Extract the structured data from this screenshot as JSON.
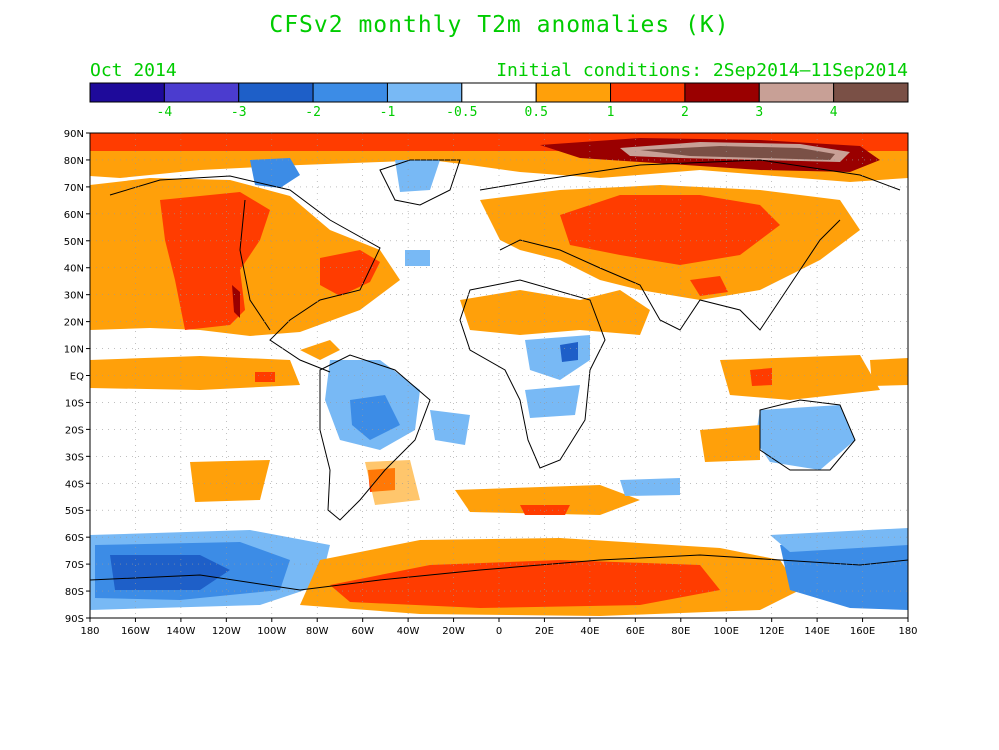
{
  "title": "CFSv2 monthly T2m anomalies (K)",
  "forecast_month": "Oct 2014",
  "initial_conditions": "Initial conditions: 2Sep2014–11Sep2014",
  "colorbar": {
    "colors": [
      "#1e0a9a",
      "#4b3ccf",
      "#1e5fc8",
      "#3c8ce6",
      "#78b9f5",
      "#ffffff",
      "#ffa00a",
      "#ff3c00",
      "#9a0000",
      "#c8a096",
      "#7a5046"
    ],
    "labels": [
      "-4",
      "-3",
      "-2",
      "-1",
      "-0.5",
      "0.5",
      "1",
      "2",
      "3",
      "4"
    ]
  },
  "axes": {
    "lat_labels": [
      "90N",
      "80N",
      "70N",
      "60N",
      "50N",
      "40N",
      "30N",
      "20N",
      "10N",
      "EQ",
      "10S",
      "20S",
      "30S",
      "40S",
      "50S",
      "60S",
      "70S",
      "80S",
      "90S"
    ],
    "lon_labels": [
      "180",
      "160W",
      "140W",
      "120W",
      "100W",
      "80W",
      "60W",
      "40W",
      "20W",
      "0",
      "20E",
      "40E",
      "60E",
      "80E",
      "100E",
      "120E",
      "140E",
      "160E",
      "180"
    ]
  },
  "colors": {
    "text_green": "#00cc00",
    "orange": "#ffa00a",
    "red": "#ff3c00",
    "darkred": "#9a0000",
    "lightblue": "#78b9f5",
    "blue": "#3c8ce6",
    "medblue": "#1e5fc8"
  }
}
